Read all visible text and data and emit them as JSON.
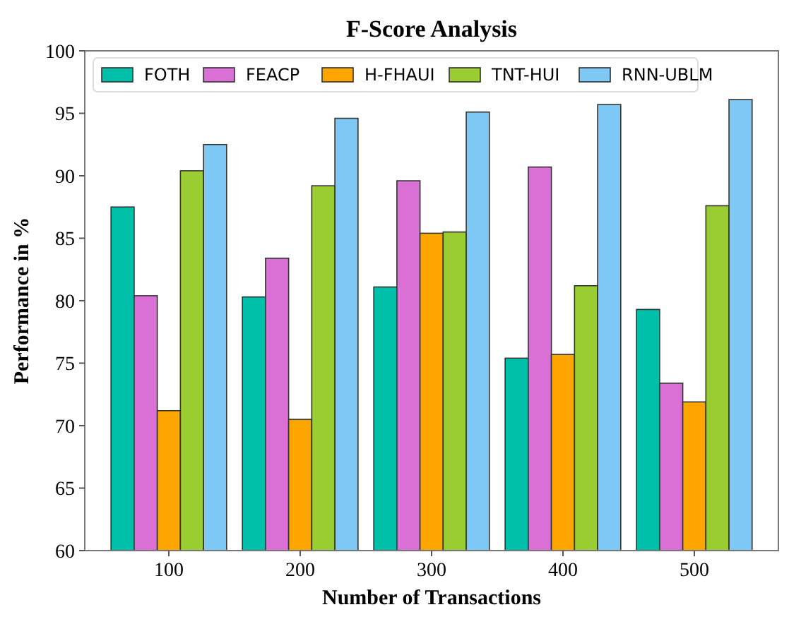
{
  "chart_data": {
    "type": "bar",
    "title": "F-Score Analysis",
    "xlabel": "Number of Transactions",
    "ylabel": "Performance in %",
    "categories": [
      "100",
      "200",
      "300",
      "400",
      "500"
    ],
    "series": [
      {
        "name": "FOTH",
        "color": "#00c0aa",
        "values": [
          87.5,
          80.3,
          81.1,
          75.4,
          79.3
        ]
      },
      {
        "name": "FEACP",
        "color": "#da70d6",
        "values": [
          80.4,
          83.4,
          89.6,
          90.7,
          73.4
        ]
      },
      {
        "name": "H-FHAUI",
        "color": "#ffa500",
        "values": [
          71.2,
          70.5,
          85.4,
          75.7,
          71.9
        ]
      },
      {
        "name": "TNT-HUI",
        "color": "#9acd32",
        "values": [
          90.4,
          89.2,
          85.5,
          81.2,
          87.6
        ]
      },
      {
        "name": "RNN-UBLM",
        "color": "#7ec8f5",
        "values": [
          92.5,
          94.6,
          95.1,
          95.7,
          96.1
        ]
      }
    ],
    "ylim": [
      60,
      100
    ],
    "yticks": [
      60,
      65,
      70,
      75,
      80,
      85,
      90,
      95,
      100
    ],
    "grid": false,
    "legend": "top"
  }
}
